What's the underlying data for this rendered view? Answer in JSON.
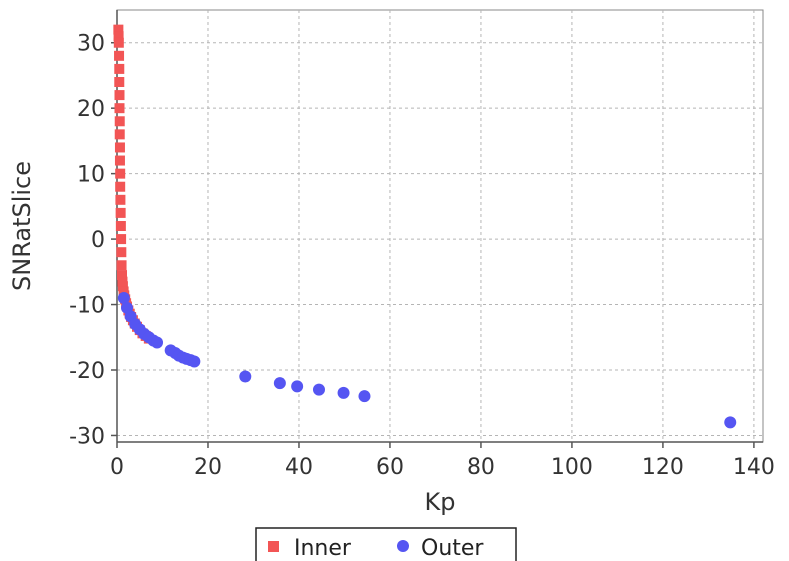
{
  "chart_data": {
    "type": "scatter",
    "title": "",
    "xlabel": "Kp",
    "ylabel": "SNRatSlice",
    "xlim": [
      0,
      142
    ],
    "ylim": [
      -31,
      35
    ],
    "xticks": [
      "0",
      "20",
      "40",
      "60",
      "80",
      "100",
      "120",
      "140"
    ],
    "yticks": [
      "-30",
      "-20",
      "-10",
      "0",
      "10",
      "20",
      "30"
    ],
    "grid": true,
    "legend_position": "bottom-center",
    "series": [
      {
        "name": "Inner",
        "marker": "square",
        "color": "#f25555",
        "points": [
          [
            0.3,
            32
          ],
          [
            0.35,
            31
          ],
          [
            0.4,
            30
          ],
          [
            0.45,
            28
          ],
          [
            0.5,
            26
          ],
          [
            0.5,
            24
          ],
          [
            0.55,
            22
          ],
          [
            0.55,
            20
          ],
          [
            0.6,
            18
          ],
          [
            0.6,
            16
          ],
          [
            0.65,
            14
          ],
          [
            0.65,
            12
          ],
          [
            0.7,
            10
          ],
          [
            0.7,
            8
          ],
          [
            0.75,
            6
          ],
          [
            0.8,
            4
          ],
          [
            0.85,
            2
          ],
          [
            0.9,
            0
          ],
          [
            0.95,
            -2
          ],
          [
            1.0,
            -4
          ],
          [
            1.1,
            -5.5
          ],
          [
            1.2,
            -6.5
          ],
          [
            1.3,
            -7.2
          ],
          [
            1.45,
            -8
          ],
          [
            1.6,
            -8.6
          ],
          [
            1.8,
            -9.2
          ],
          [
            2.0,
            -9.8
          ],
          [
            2.2,
            -10.3
          ],
          [
            2.5,
            -10.9
          ],
          [
            2.8,
            -11.4
          ],
          [
            3.1,
            -11.9
          ],
          [
            3.5,
            -12.4
          ],
          [
            3.9,
            -12.9
          ],
          [
            4.4,
            -13.4
          ],
          [
            5.0,
            -13.9
          ],
          [
            5.6,
            -14.4
          ],
          [
            6.3,
            -14.8
          ],
          [
            7.0,
            -15.2
          ]
        ]
      },
      {
        "name": "Outer",
        "marker": "circle",
        "color": "#5555f2",
        "points": [
          [
            1.5,
            -9
          ],
          [
            2.2,
            -10.5
          ],
          [
            3.0,
            -11.8
          ],
          [
            4.0,
            -13
          ],
          [
            5.0,
            -13.8
          ],
          [
            6.0,
            -14.5
          ],
          [
            7.0,
            -15
          ],
          [
            8.0,
            -15.5
          ],
          [
            8.8,
            -15.8
          ],
          [
            11.8,
            -17
          ],
          [
            12.8,
            -17.4
          ],
          [
            13.6,
            -17.8
          ],
          [
            14.5,
            -18.1
          ],
          [
            15.3,
            -18.3
          ],
          [
            16.2,
            -18.5
          ],
          [
            17.0,
            -18.7
          ],
          [
            28.2,
            -21
          ],
          [
            35.8,
            -22
          ],
          [
            39.6,
            -22.5
          ],
          [
            44.4,
            -23
          ],
          [
            49.8,
            -23.5
          ],
          [
            54.4,
            -24
          ],
          [
            134.8,
            -28
          ]
        ]
      }
    ]
  }
}
